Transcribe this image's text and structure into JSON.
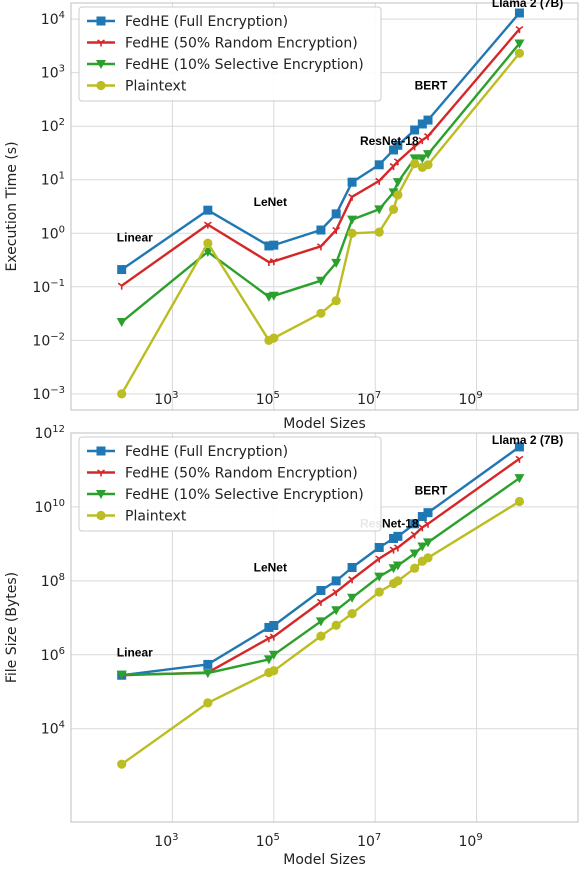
{
  "chart_data": [
    {
      "type": "line",
      "xlabel": "Model Sizes",
      "ylabel": "Execution Time (s)",
      "xscale": "log",
      "yscale": "log",
      "xlim": [
        10,
        100000000000
      ],
      "ylim": [
        0.0005,
        20000
      ],
      "x_ticks": [
        {
          "exp": "3",
          "value": 1000
        },
        {
          "exp": "5",
          "value": 100000
        },
        {
          "exp": "7",
          "value": 10000000
        },
        {
          "exp": "9",
          "value": 1000000000
        }
      ],
      "y_ticks": [
        {
          "exp": "−3",
          "value": 0.001
        },
        {
          "exp": "−2",
          "value": 0.01
        },
        {
          "exp": "−1",
          "value": 0.1
        },
        {
          "exp": "0",
          "value": 1
        },
        {
          "exp": "1",
          "value": 10
        },
        {
          "exp": "2",
          "value": 100
        },
        {
          "exp": "3",
          "value": 1000
        },
        {
          "exp": "4",
          "value": 10000
        }
      ],
      "grid": true,
      "legend_position": "top-left",
      "annotations": [
        {
          "text": "Linear",
          "x": 80,
          "y": 0.7
        },
        {
          "text": "LeNet",
          "x": 40000,
          "y": 3.2
        },
        {
          "text": "ResNet-18",
          "x": 5000000,
          "y": 45
        },
        {
          "text": "BERT",
          "x": 60000000,
          "y": 480
        },
        {
          "text": "Llama 2 (7B)",
          "x": 2000000000,
          "y": 17000
        }
      ],
      "series": [
        {
          "name": "FedHE (Full Encryption)",
          "color": "#1f77b4",
          "marker": "square",
          "x": [
            100,
            5000,
            80000,
            100000,
            850000,
            1700000,
            3500000,
            12000000,
            23000000,
            28000000,
            60000000,
            85000000,
            110000000,
            7000000000
          ],
          "y": [
            0.21,
            2.7,
            0.58,
            0.6,
            1.15,
            2.3,
            9.0,
            19.0,
            36.0,
            44.0,
            85.0,
            110.0,
            130.0,
            13000.0
          ]
        },
        {
          "name": "FedHE (50% Random Encryption)",
          "color": "#d62728",
          "marker": "tri",
          "x": [
            100,
            5000,
            80000,
            100000,
            850000,
            1700000,
            3500000,
            12000000,
            23000000,
            28000000,
            60000000,
            85000000,
            110000000,
            7000000000
          ],
          "y": [
            0.105,
            1.45,
            0.29,
            0.3,
            0.57,
            1.15,
            4.8,
            9.5,
            18.0,
            22.0,
            42.0,
            55.0,
            65.0,
            6500.0
          ]
        },
        {
          "name": "FedHE (10% Selective Encryption)",
          "color": "#2ca02c",
          "marker": "triangle-down",
          "x": [
            100,
            5000,
            80000,
            100000,
            850000,
            1700000,
            3500000,
            12000000,
            23000000,
            28000000,
            60000000,
            85000000,
            110000000,
            7000000000
          ],
          "y": [
            0.022,
            0.45,
            0.065,
            0.068,
            0.13,
            0.28,
            1.8,
            2.8,
            5.8,
            9.0,
            25.0,
            25.0,
            30.0,
            3500.0
          ]
        },
        {
          "name": "Plaintext",
          "color": "#bcbd22",
          "marker": "circle",
          "x": [
            100,
            5000,
            80000,
            100000,
            850000,
            1700000,
            3500000,
            12000000,
            23000000,
            28000000,
            60000000,
            85000000,
            110000000,
            7000000000
          ],
          "y": [
            0.001,
            0.65,
            0.01,
            0.011,
            0.032,
            0.055,
            1.0,
            1.05,
            2.8,
            5.2,
            20.0,
            17.0,
            19.0,
            2300.0
          ]
        }
      ]
    },
    {
      "type": "line",
      "xlabel": "Model Sizes",
      "ylabel": "File Size (Bytes)",
      "xscale": "log",
      "yscale": "log",
      "xlim": [
        10,
        100000000000
      ],
      "ylim": [
        30,
        1000000000000
      ],
      "x_ticks": [
        {
          "exp": "3",
          "value": 1000
        },
        {
          "exp": "5",
          "value": 100000
        },
        {
          "exp": "7",
          "value": 10000000
        },
        {
          "exp": "9",
          "value": 1000000000
        }
      ],
      "y_ticks": [
        {
          "exp": "4",
          "value": 10000
        },
        {
          "exp": "6",
          "value": 1000000
        },
        {
          "exp": "8",
          "value": 100000000
        },
        {
          "exp": "10",
          "value": 10000000000
        },
        {
          "exp": "12",
          "value": 1000000000000
        }
      ],
      "grid": true,
      "legend_position": "top-left",
      "annotations": [
        {
          "text": "Linear",
          "x": 80,
          "y": 900000
        },
        {
          "text": "LeNet",
          "x": 40000,
          "y": 180000000
        },
        {
          "text": "ResNet-18",
          "x": 5000000,
          "y": 2800000000
        },
        {
          "text": "BERT",
          "x": 60000000,
          "y": 22000000000
        },
        {
          "text": "Llama 2 (7B)",
          "x": 2000000000,
          "y": 500000000000
        }
      ],
      "series": [
        {
          "name": "FedHE (Full Encryption)",
          "color": "#1f77b4",
          "marker": "square",
          "x": [
            100,
            5000,
            80000,
            100000,
            850000,
            1700000,
            3500000,
            12000000,
            23000000,
            28000000,
            60000000,
            85000000,
            110000000,
            7000000000
          ],
          "y": [
            280000,
            550000,
            5500000,
            6200000,
            55000000,
            100000000,
            230000000,
            800000000,
            1400000000,
            1600000000,
            3500000000,
            5500000000,
            7000000000,
            420000000000
          ]
        },
        {
          "name": "FedHE (50% Random Encryption)",
          "color": "#d62728",
          "marker": "tri",
          "x": [
            100,
            5000,
            80000,
            100000,
            850000,
            1700000,
            3500000,
            12000000,
            23000000,
            28000000,
            60000000,
            85000000,
            110000000,
            7000000000
          ],
          "y": [
            280000,
            330000,
            2800000,
            3100000,
            27000000,
            50000000,
            110000000,
            400000000,
            700000000,
            800000000,
            1800000000,
            2800000000,
            3500000000,
            200000000000
          ]
        },
        {
          "name": "FedHE (10% Selective Encryption)",
          "color": "#2ca02c",
          "marker": "triangle-down",
          "x": [
            100,
            5000,
            80000,
            100000,
            850000,
            1700000,
            3500000,
            12000000,
            23000000,
            28000000,
            60000000,
            85000000,
            110000000,
            7000000000
          ],
          "y": [
            290000,
            320000,
            750000,
            1000000,
            8000000,
            16000000,
            35000000,
            130000000,
            220000000,
            260000000,
            550000000,
            850000000,
            1100000000,
            60000000000
          ]
        },
        {
          "name": "Plaintext",
          "color": "#bcbd22",
          "marker": "circle",
          "x": [
            100,
            5000,
            80000,
            100000,
            850000,
            1700000,
            3500000,
            12000000,
            23000000,
            28000000,
            60000000,
            85000000,
            110000000,
            7000000000
          ],
          "y": [
            1100,
            50000,
            330000,
            370000,
            3200000,
            6300000,
            13000000,
            50000000,
            85000000,
            100000000,
            220000000,
            340000000,
            420000000,
            14000000000
          ]
        }
      ]
    }
  ]
}
